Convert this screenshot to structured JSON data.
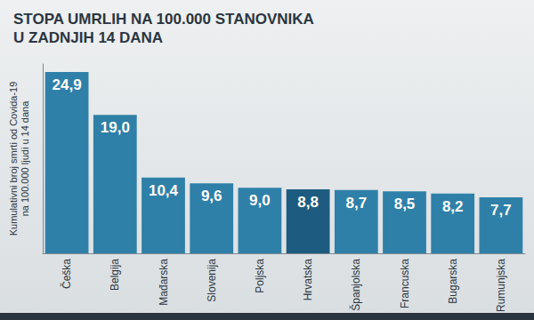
{
  "chart_data": {
    "type": "bar",
    "title": "STOPA UMRLIH NA 100.000 STANOVNIKA\nU ZADNJIH 14 DANA",
    "y_label": "Kumulativni broj smrti od Covida-19\nna 100.000 ljudi u 14 dana",
    "categories": [
      "Češka",
      "Belgija",
      "Mađarska",
      "Slovenija",
      "Poljska",
      "Hrvatska",
      "Španjolska",
      "Francuska",
      "Bugarska",
      "Rumunjska"
    ],
    "values": [
      24.9,
      19.0,
      10.4,
      9.6,
      9.0,
      8.8,
      8.7,
      8.5,
      8.2,
      7.7
    ],
    "value_labels": [
      "24,9",
      "19,0",
      "10,4",
      "9,6",
      "9,0",
      "8,8",
      "8,7",
      "8,5",
      "8,2",
      "7,7"
    ],
    "colors": [
      "#2f80a8",
      "#2f80a8",
      "#2f80a8",
      "#2f80a8",
      "#2f80a8",
      "#1d5c80",
      "#2f80a8",
      "#2f80a8",
      "#2f80a8",
      "#2f80a8"
    ],
    "ylim": [
      0,
      26
    ],
    "yticks": [],
    "grid": false,
    "data_labels": true,
    "tick_labels": "x"
  }
}
